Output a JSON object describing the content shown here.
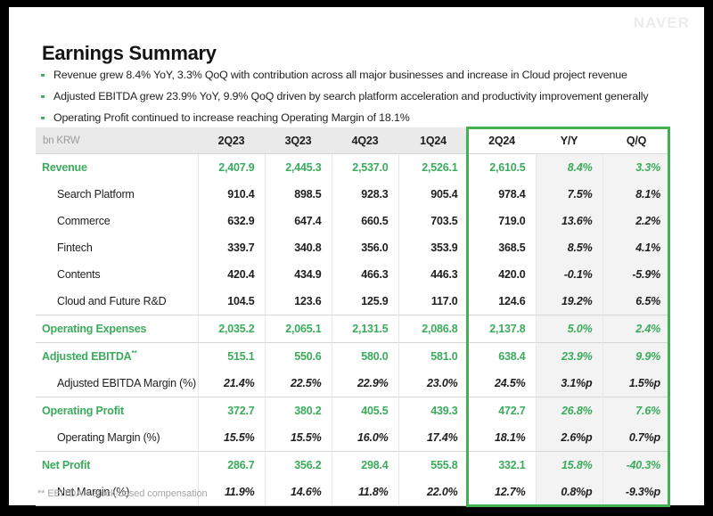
{
  "brand": {
    "logo": "NAVER"
  },
  "page": {
    "title": "Earnings Summary"
  },
  "bullets": [
    "Revenue grew 8.4% YoY, 3.3% QoQ with contribution across all major businesses and increase in Cloud project revenue",
    "Adjusted EBITDA grew 23.9% YoY, 9.9% QoQ driven by search platform acceleration and productivity improvement generally",
    "Operating Profit continued to increase reaching Operating Margin of 18.1%"
  ],
  "colors": {
    "accent_green": "#3aab5c",
    "box_green": "#43b150",
    "header_bg": "#eaeaea",
    "shaded_col_bg": "#f3f3f3"
  },
  "table": {
    "unit_label": "bn KRW",
    "columns": [
      "2Q23",
      "3Q23",
      "4Q23",
      "1Q24",
      "2Q24",
      "Y/Y",
      "Q/Q"
    ],
    "highlight_columns": [
      "2Q24",
      "Y/Y",
      "Q/Q"
    ],
    "rows": [
      {
        "label": "Revenue",
        "style": "section",
        "values": [
          "2,407.9",
          "2,445.3",
          "2,537.0",
          "2,526.1",
          "2,610.5",
          "8.4%",
          "3.3%"
        ]
      },
      {
        "label": "Search Platform",
        "style": "sub",
        "values": [
          "910.4",
          "898.5",
          "928.3",
          "905.4",
          "978.4",
          "7.5%",
          "8.1%"
        ]
      },
      {
        "label": "Commerce",
        "style": "sub",
        "values": [
          "632.9",
          "647.4",
          "660.5",
          "703.5",
          "719.0",
          "13.6%",
          "2.2%"
        ]
      },
      {
        "label": "Fintech",
        "style": "sub",
        "values": [
          "339.7",
          "340.8",
          "356.0",
          "353.9",
          "368.5",
          "8.5%",
          "4.1%"
        ]
      },
      {
        "label": "Contents",
        "style": "sub",
        "values": [
          "420.4",
          "434.9",
          "466.3",
          "446.3",
          "420.0",
          "-0.1%",
          "-5.9%"
        ]
      },
      {
        "label": "Cloud and Future R&D",
        "style": "sub",
        "values": [
          "104.5",
          "123.6",
          "125.9",
          "117.0",
          "124.6",
          "19.2%",
          "6.5%"
        ]
      },
      {
        "label": "Operating Expenses",
        "style": "section",
        "values": [
          "2,035.2",
          "2,065.1",
          "2,131.5",
          "2,086.8",
          "2,137.8",
          "5.0%",
          "2.4%"
        ]
      },
      {
        "label": "Adjusted EBITDA",
        "label_sup": "**",
        "style": "section",
        "values": [
          "515.1",
          "550.6",
          "580.0",
          "581.0",
          "638.4",
          "23.9%",
          "9.9%"
        ]
      },
      {
        "label": "Adjusted EBITDA Margin (%)",
        "style": "margin",
        "values": [
          "21.4%",
          "22.5%",
          "22.9%",
          "23.0%",
          "24.5%",
          "3.1%p",
          "1.5%p"
        ]
      },
      {
        "label": "Operating Profit",
        "style": "section",
        "values": [
          "372.7",
          "380.2",
          "405.5",
          "439.3",
          "472.7",
          "26.8%",
          "7.6%"
        ]
      },
      {
        "label": "Operating Margin (%)",
        "style": "margin",
        "values": [
          "15.5%",
          "15.5%",
          "16.0%",
          "17.4%",
          "18.1%",
          "2.6%p",
          "0.7%p"
        ]
      },
      {
        "label": "Net Profit",
        "style": "section",
        "values": [
          "286.7",
          "356.2",
          "298.4",
          "555.8",
          "332.1",
          "15.8%",
          "-40.3%"
        ]
      },
      {
        "label": "Net Margin (%)",
        "style": "margin",
        "values": [
          "11.9%",
          "14.6%",
          "11.8%",
          "22.0%",
          "12.7%",
          "0.8%p",
          "-9.3%p"
        ]
      }
    ]
  },
  "footnote": "** EBITDA + stock-based compensation"
}
